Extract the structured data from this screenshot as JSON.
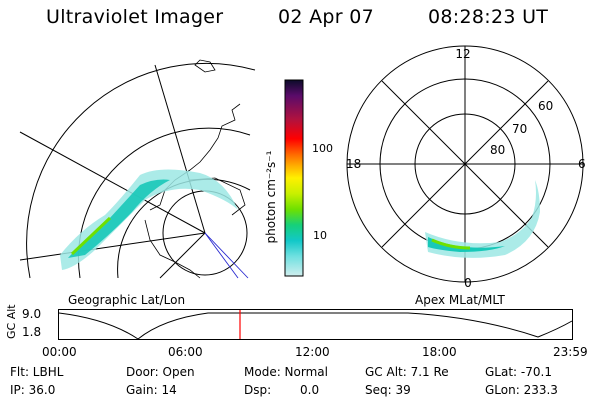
{
  "header": {
    "instrument": "Ultraviolet Imager",
    "date": "02 Apr 07",
    "time": "08:28:23 UT"
  },
  "panels": {
    "left_label": "Geographic Lat/Lon",
    "right_label": "Apex MLat/MLT"
  },
  "colorbar": {
    "unit_label": "photon cm⁻²s⁻¹",
    "ticks": [
      "100",
      "10"
    ],
    "colors": [
      "#0b0b2a",
      "#5a0b6a",
      "#b0123f",
      "#ff0000",
      "#ff6a00",
      "#ffb000",
      "#fff000",
      "#c8f000",
      "#6ee000",
      "#16d07a",
      "#12c8c8",
      "#6fe0e0",
      "#cfeeee"
    ]
  },
  "polar": {
    "mlt_labels": {
      "top": "12",
      "bottom": "0",
      "left": "18",
      "right": "6"
    },
    "lat_labels": [
      "60",
      "70",
      "80"
    ]
  },
  "altitude_plot": {
    "axis_label": "GC Alt",
    "y_ticks": [
      "9.0",
      "1.8"
    ],
    "x_ticks": [
      "00:00",
      "06:00",
      "12:00",
      "18:00",
      "23:59"
    ],
    "marker_color": "#ff0000"
  },
  "status": {
    "flt": "Flt: LBHL",
    "door": "Door: Open",
    "mode": "Mode: Normal",
    "gc_alt": "GC Alt: 7.1 Re",
    "glat": "GLat: -70.1",
    "ip": "IP: 36.0",
    "gain": "Gain: 14",
    "dsp": "Dsp:",
    "dsp_value": "0.0",
    "seq": "Seq: 39",
    "glon": "GLon: 233.3"
  }
}
